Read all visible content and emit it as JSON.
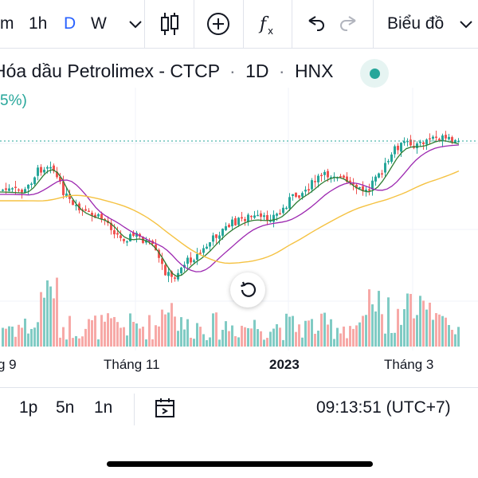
{
  "toolbar": {
    "interval_partial": "m",
    "interval_1h": "1h",
    "interval_d": "D",
    "interval_w": "W",
    "chart_menu_label": "Biểu đồ",
    "icons": [
      "chevron-down-icon",
      "candlestick-icon",
      "add-circle-icon",
      "function-icon",
      "undo-icon",
      "redo-icon"
    ]
  },
  "symbol": {
    "title": "Hóa dầu Petrolimex - CTCP",
    "separator": "·",
    "timeframe": "1D",
    "exchange": "HNX",
    "change_partial": "5%)",
    "status_color": "#26a69a"
  },
  "chart_data": {
    "type": "candlestick",
    "x_tick_labels": [
      "g 9",
      "Tháng 11",
      "2023",
      "Tháng 3"
    ],
    "series": [
      {
        "color": "#26a69a"
      },
      {
        "color": "#ef5350"
      },
      {
        "color": "#2e7d32"
      },
      {
        "color": "#9c27b0"
      },
      {
        "color": "#f5c242"
      }
    ],
    "grid": true,
    "price_line": "dotted"
  },
  "bottom_bar": {
    "range_1p": "1p",
    "range_5n": "5n",
    "range_1n": "1n",
    "time": "09:13:51 (UTC+7)"
  }
}
